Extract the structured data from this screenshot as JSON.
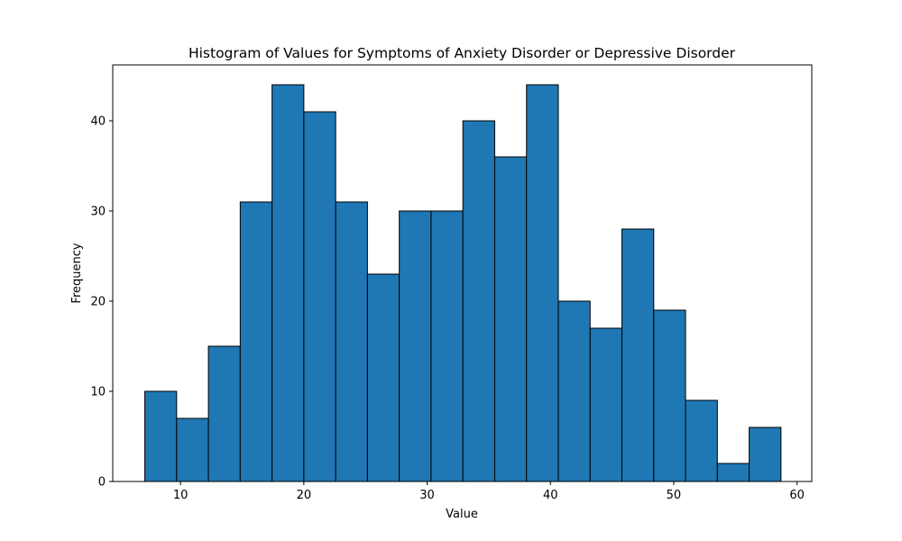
{
  "chart_data": {
    "type": "bar",
    "title": "Histogram of Values for Symptoms of Anxiety Disorder or Depressive Disorder",
    "xlabel": "Value",
    "ylabel": "Frequency",
    "xlim": [
      4.5,
      61.2
    ],
    "ylim": [
      0,
      46.2
    ],
    "xticks": [
      10,
      20,
      30,
      40,
      50,
      60
    ],
    "yticks": [
      0,
      10,
      20,
      30,
      40
    ],
    "grid": false,
    "bin_edges": [
      7.1,
      9.68,
      12.26,
      14.84,
      17.42,
      20.0,
      22.58,
      25.16,
      27.74,
      30.32,
      32.9,
      35.48,
      38.06,
      40.64,
      43.22,
      45.8,
      48.38,
      50.96,
      53.54,
      56.12,
      58.7
    ],
    "values": [
      10,
      7,
      15,
      31,
      44,
      41,
      31,
      23,
      30,
      30,
      40,
      36,
      44,
      20,
      17,
      28,
      19,
      9,
      2,
      6
    ],
    "bar_color": "#1f77b4",
    "edge_color": "#000000"
  }
}
